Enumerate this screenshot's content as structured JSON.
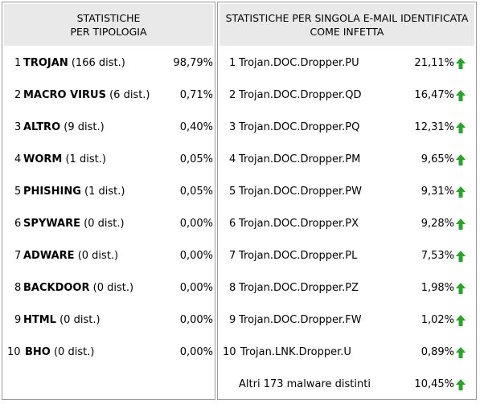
{
  "left": {
    "header_line1": "STATISTICHE",
    "header_line2": "PER TIPOLOGIA",
    "rows": [
      {
        "rank": "1",
        "name": "TROJAN",
        "detail": "(166 dist.)",
        "pct": "98,79%"
      },
      {
        "rank": "2",
        "name": "MACRO VIRUS",
        "detail": "(6 dist.)",
        "pct": "0,71%"
      },
      {
        "rank": "3",
        "name": "ALTRO",
        "detail": "(9 dist.)",
        "pct": "0,40%"
      },
      {
        "rank": "4",
        "name": "WORM",
        "detail": "(1 dist.)",
        "pct": "0,05%"
      },
      {
        "rank": "5",
        "name": "PHISHING",
        "detail": "(1 dist.)",
        "pct": "0,05%"
      },
      {
        "rank": "6",
        "name": "SPYWARE",
        "detail": "(0 dist.)",
        "pct": "0,00%"
      },
      {
        "rank": "7",
        "name": "ADWARE",
        "detail": "(0 dist.)",
        "pct": "0,00%"
      },
      {
        "rank": "8",
        "name": "BACKDOOR",
        "detail": "(0 dist.)",
        "pct": "0,00%"
      },
      {
        "rank": "9",
        "name": "HTML",
        "detail": "(0 dist.)",
        "pct": "0,00%"
      },
      {
        "rank": "10",
        "name": "BHO",
        "detail": "(0 dist.)",
        "pct": "0,00%"
      }
    ]
  },
  "right": {
    "header_line1": "STATISTICHE PER SINGOLA E-MAIL IDENTIFICATA",
    "header_line2": "COME INFETTA",
    "arrow_color": "#1faa1f",
    "rows": [
      {
        "rank": "1",
        "name": "Trojan.DOC.Dropper.PU",
        "pct": "21,11%",
        "trend": "up-arrow-icon"
      },
      {
        "rank": "2",
        "name": "Trojan.DOC.Dropper.QD",
        "pct": "16,47%",
        "trend": "up-arrow-icon"
      },
      {
        "rank": "3",
        "name": "Trojan.DOC.Dropper.PQ",
        "pct": "12,31%",
        "trend": "up-arrow-icon"
      },
      {
        "rank": "4",
        "name": "Trojan.DOC.Dropper.PM",
        "pct": "9,65%",
        "trend": "up-arrow-icon"
      },
      {
        "rank": "5",
        "name": "Trojan.DOC.Dropper.PW",
        "pct": "9,31%",
        "trend": "up-arrow-icon"
      },
      {
        "rank": "6",
        "name": "Trojan.DOC.Dropper.PX",
        "pct": "9,28%",
        "trend": "up-arrow-icon"
      },
      {
        "rank": "7",
        "name": "Trojan.DOC.Dropper.PL",
        "pct": "7,53%",
        "trend": "up-arrow-icon"
      },
      {
        "rank": "8",
        "name": "Trojan.DOC.Dropper.PZ",
        "pct": "1,98%",
        "trend": "up-arrow-icon"
      },
      {
        "rank": "9",
        "name": "Trojan.DOC.Dropper.FW",
        "pct": "1,02%",
        "trend": "up-arrow-icon"
      },
      {
        "rank": "10",
        "name": "Trojan.LNK.Dropper.U",
        "pct": "0,89%",
        "trend": "up-arrow-icon"
      }
    ],
    "other": {
      "name": "Altri 173 malware distinti",
      "pct": "10,45%",
      "trend": "up-arrow-icon"
    }
  }
}
